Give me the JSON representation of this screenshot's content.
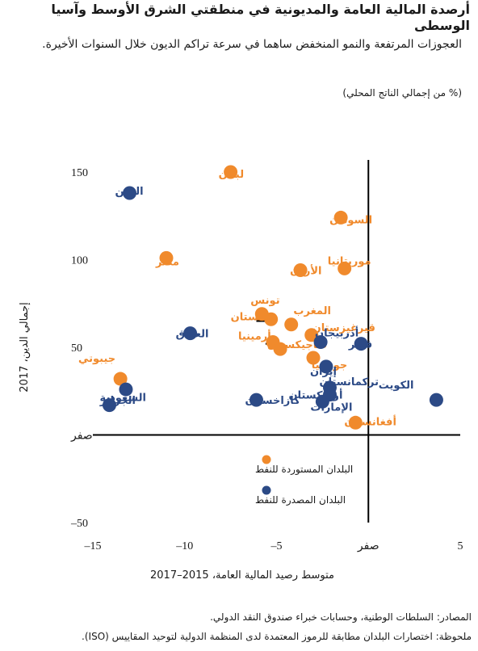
{
  "header": {
    "title": "أرصدة المالية العامة والمديونية في منطقتي الشرق الأوسط وآسيا الوسطى",
    "subtitle": "العجوزات المرتفعة والنمو المنخفض ساهما في سرعة تراكم الديون خلال السنوات الأخيرة.",
    "unit": "(% من إجمالي الناتج المحلي)"
  },
  "footer": {
    "sources": "المصادر: السلطات الوطنية، وحسابات خبراء صندوق النقد الدولي.",
    "note": "ملحوظة: اختصارات البلدان مطابقة للرموز المعتمدة لدى المنظمة الدولية لتوحيد المقاييس (ISO)."
  },
  "colors": {
    "importers": "#f08a2c",
    "exporters": "#2c4a86",
    "axis": "#000000"
  },
  "chart_data": {
    "type": "scatter",
    "xlabel": "متوسط رصيد المالية العامة، 2015–2017",
    "ylabel": "إجمالي الدين، 2017",
    "xlim": [
      -15,
      5
    ],
    "ylim": [
      -50,
      150
    ],
    "x_ticks": [
      {
        "value": -15,
        "label": "15–"
      },
      {
        "value": -10,
        "label": "10–"
      },
      {
        "value": -5,
        "label": "5–"
      },
      {
        "value": 0,
        "label": "صفر"
      },
      {
        "value": 5,
        "label": "5"
      }
    ],
    "y_ticks": [
      {
        "value": 150,
        "label": "150"
      },
      {
        "value": 100,
        "label": "100"
      },
      {
        "value": 50,
        "label": "50"
      },
      {
        "value": 0,
        "label": "صفر"
      },
      {
        "value": -50,
        "label": "50–"
      }
    ],
    "grid": false,
    "legend_position": "bottom-left",
    "series": [
      {
        "name": "البلدان المستوردة للنفط",
        "color": "#f08a2c",
        "points": [
          {
            "label": "لبنان",
            "x": -7.5,
            "y": 150
          },
          {
            "label": "مصر",
            "x": -11,
            "y": 101
          },
          {
            "label": "السودان",
            "x": -1.5,
            "y": 124
          },
          {
            "label": "موريتانيا",
            "x": -1.3,
            "y": 95
          },
          {
            "label": "الأردن",
            "x": -3.7,
            "y": 94
          },
          {
            "label": "تونس",
            "x": -5.8,
            "y": 69
          },
          {
            "label": "باكستان",
            "x": -5.3,
            "y": 66
          },
          {
            "label": "المغرب",
            "x": -4.2,
            "y": 63
          },
          {
            "label": "قيرغيزستان",
            "x": -3.1,
            "y": 57
          },
          {
            "label": "أرمينيا",
            "x": -5.2,
            "y": 53
          },
          {
            "label": "طاجيكستان",
            "x": -4.8,
            "y": 49
          },
          {
            "label": "جورجيا",
            "x": -3,
            "y": 44
          },
          {
            "label": "جيبوتي",
            "x": -13.5,
            "y": 32
          },
          {
            "label": "أفغانستان",
            "x": -0.7,
            "y": 7
          }
        ]
      },
      {
        "name": "البلدان المصدرة للنفط",
        "color": "#2c4a86",
        "points": [
          {
            "label": "اليمن",
            "x": -13,
            "y": 138
          },
          {
            "label": "العراق",
            "x": -9.7,
            "y": 58
          },
          {
            "label": "أذربيجان",
            "x": -2.6,
            "y": 53
          },
          {
            "label": "قطر",
            "x": -0.4,
            "y": 52
          },
          {
            "label": "إيران",
            "x": -2.3,
            "y": 39
          },
          {
            "label": "تركمانستان",
            "x": -2.1,
            "y": 27
          },
          {
            "label": "أوزبكستان",
            "x": -2.1,
            "y": 23
          },
          {
            "label": "الإمارات",
            "x": -2.5,
            "y": 19
          },
          {
            "label": "كازاخستان",
            "x": -6.1,
            "y": 20
          },
          {
            "label": "السعودية",
            "x": -14.1,
            "y": 17
          },
          {
            "label": "الجزائر",
            "x": -13.2,
            "y": 26
          },
          {
            "label": "الكويت",
            "x": 3.7,
            "y": 20
          }
        ]
      }
    ],
    "reference_lines": [
      {
        "label": "باكستان",
        "x_from": -6.1,
        "x_to": -5.3,
        "y": 65
      },
      {
        "label": "أرمينيا",
        "x_from": -5.6,
        "x_to": -5.2,
        "y": 52
      }
    ]
  }
}
